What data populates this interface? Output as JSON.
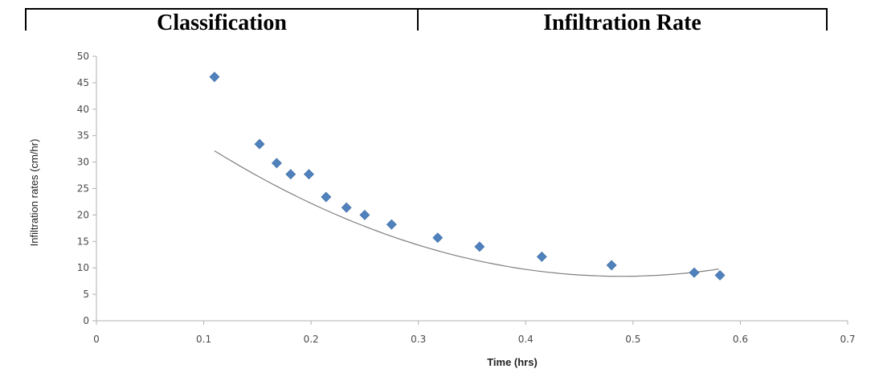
{
  "table_header": {
    "col1": "Classification",
    "col2": "Infiltration Rate"
  },
  "chart_data": {
    "type": "scatter",
    "xlabel": "Time (hrs)",
    "ylabel": "Infiltration rates (cm/hr)",
    "xlim": [
      0,
      0.7
    ],
    "ylim": [
      0,
      50
    ],
    "x_ticks": [
      "0",
      "0.1",
      "0.2",
      "0.3",
      "0.4",
      "0.5",
      "0.6",
      "0.7"
    ],
    "y_ticks": [
      "0",
      "5",
      "10",
      "15",
      "20",
      "25",
      "30",
      "35",
      "40",
      "45",
      "50"
    ],
    "grid": false,
    "marker_color": "#4f81bd",
    "trendline_color": "#7f7f7f",
    "series": [
      {
        "points": [
          {
            "x": 0.11,
            "y": 46.1
          },
          {
            "x": 0.152,
            "y": 33.4
          },
          {
            "x": 0.168,
            "y": 29.8
          },
          {
            "x": 0.181,
            "y": 27.7
          },
          {
            "x": 0.198,
            "y": 27.7
          },
          {
            "x": 0.214,
            "y": 23.4
          },
          {
            "x": 0.233,
            "y": 21.4
          },
          {
            "x": 0.25,
            "y": 20.0
          },
          {
            "x": 0.275,
            "y": 18.2
          },
          {
            "x": 0.318,
            "y": 15.7
          },
          {
            "x": 0.357,
            "y": 14.0
          },
          {
            "x": 0.415,
            "y": 12.1
          },
          {
            "x": 0.48,
            "y": 10.5
          },
          {
            "x": 0.557,
            "y": 9.1
          },
          {
            "x": 0.581,
            "y": 8.6
          }
        ]
      }
    ],
    "trendline": {
      "type": "polynomial-2",
      "x_range": [
        0.11,
        0.58
      ],
      "coefficients": {
        "a": 165.1,
        "b": -161.5,
        "c": 47.9
      }
    }
  }
}
